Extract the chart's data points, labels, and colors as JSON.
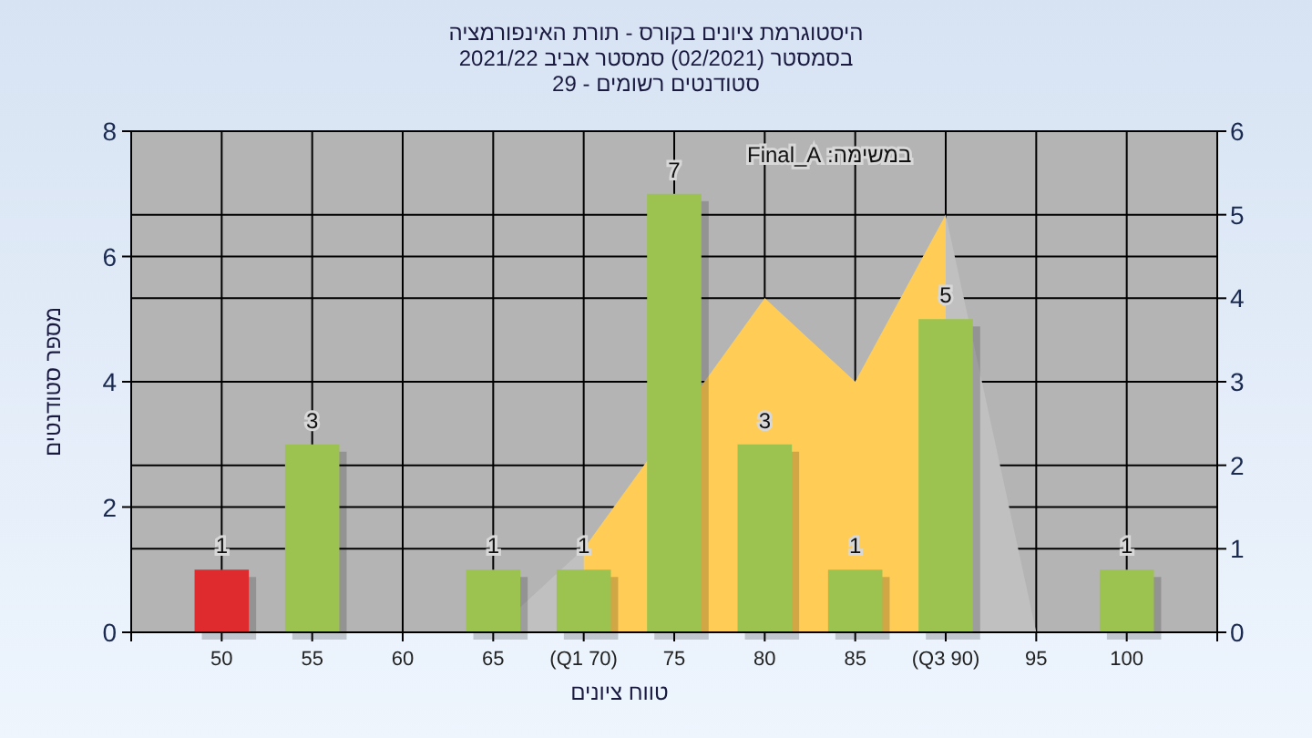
{
  "chart_data": {
    "type": "bar",
    "title": "היסטוגרמת ציונים בקורס - תורת האינפורמציה",
    "subtitle": "בסמסטר (02/2021) סמסטר אביב 2021/22\nסטודנטים רשומים - 29",
    "xlabel": "טווח ציונים",
    "ylabel": "מספר סטודנטים",
    "categories": [
      "50",
      "55",
      "60",
      "65",
      "(Q1 70)",
      "75",
      "80",
      "85",
      "(Q3 90)",
      "95",
      "100"
    ],
    "series": [
      {
        "type": "area",
        "axis": "y2",
        "color": "#c0c0c0",
        "values": [
          null,
          null,
          null,
          0,
          1,
          null,
          4,
          3,
          5,
          0,
          null
        ]
      },
      {
        "type": "area",
        "axis": "y2",
        "color": "#ffcc55",
        "values": [
          null,
          null,
          null,
          null,
          1,
          null,
          4,
          3,
          5,
          null,
          null
        ]
      },
      {
        "colors": [
          "#e02b2e",
          "#9cc24f",
          "#9cc24f",
          "#9cc24f",
          "#9cc24f",
          "#9cc24f",
          "#9cc24f",
          "#9cc24f",
          "#9cc24f",
          "#9cc24f",
          "#9cc24f"
        ],
        "values": [
          1,
          3,
          0,
          1,
          1,
          7,
          3,
          1,
          5,
          0,
          1
        ],
        "value_labels": [
          "1",
          "3",
          null,
          "1",
          "1",
          "7",
          "3",
          "1",
          "5",
          null,
          "1"
        ]
      }
    ],
    "ylim": [
      0,
      8
    ],
    "yticks": [
      0,
      2,
      4,
      6,
      8
    ],
    "y2lim": [
      0,
      6
    ],
    "y2ticks": [
      0,
      1,
      2,
      3,
      4,
      5,
      6
    ],
    "grid": true,
    "annotations": [
      "במשימה: Final_A"
    ]
  }
}
